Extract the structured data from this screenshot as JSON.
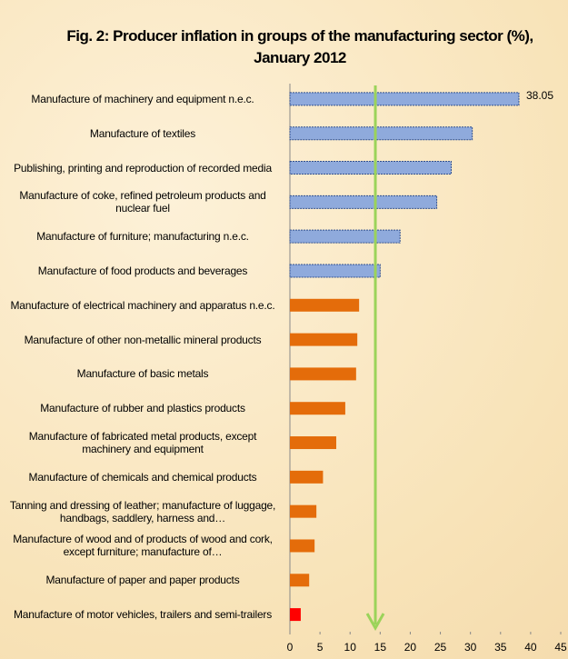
{
  "chart_data": {
    "type": "hbar",
    "title": "Fig. 2: Producer inflation in groups of the manufacturing sector (%), January 2012",
    "categories": [
      "Manufacture of machinery and equipment n.e.c.",
      "Manufacture of textiles",
      "Publishing, printing and reproduction of recorded media",
      "Manufacture of coke, refined petroleum products and nuclear fuel",
      "Manufacture of furniture; manufacturing n.e.c.",
      "Manufacture of food products and beverages",
      "Manufacture of electrical machinery and apparatus n.e.c.",
      "Manufacture of other non-metallic mineral products",
      "Manufacture of basic metals",
      "Manufacture of rubber and plastics products",
      "Manufacture of fabricated metal products, except machinery and equipment",
      "Manufacture of chemicals and chemical products",
      "Tanning and dressing of leather; manufacture of luggage, handbags, saddlery, harness and…",
      "Manufacture of wood and of products of wood and cork, except furniture; manufacture of…",
      "Manufacture of paper and paper products",
      "Manufacture of motor vehicles, trailers and semi-trailers"
    ],
    "values": [
      38.05,
      30.3,
      26.8,
      24.4,
      18.3,
      15,
      11.5,
      11.2,
      11,
      9.2,
      7.7,
      5.5,
      4.4,
      4.1,
      3.2,
      1.8
    ],
    "value_labels": [
      "38.05",
      null,
      null,
      null,
      null,
      null,
      null,
      null,
      null,
      null,
      null,
      null,
      null,
      null,
      null,
      null
    ],
    "colors": [
      "#8faadc",
      "#8faadc",
      "#8faadc",
      "#8faadc",
      "#8faadc",
      "#8faadc",
      "#e46c0a",
      "#e46c0a",
      "#e46c0a",
      "#e46c0a",
      "#e46c0a",
      "#e46c0a",
      "#e46c0a",
      "#e46c0a",
      "#e46c0a",
      "#ff0000"
    ],
    "xlim": [
      0,
      45
    ],
    "xticks": [
      0,
      5,
      10,
      15,
      20,
      25,
      30,
      35,
      40,
      45
    ],
    "reference_value": 14.2,
    "reference_color": "#9bd35a",
    "grid": false
  }
}
